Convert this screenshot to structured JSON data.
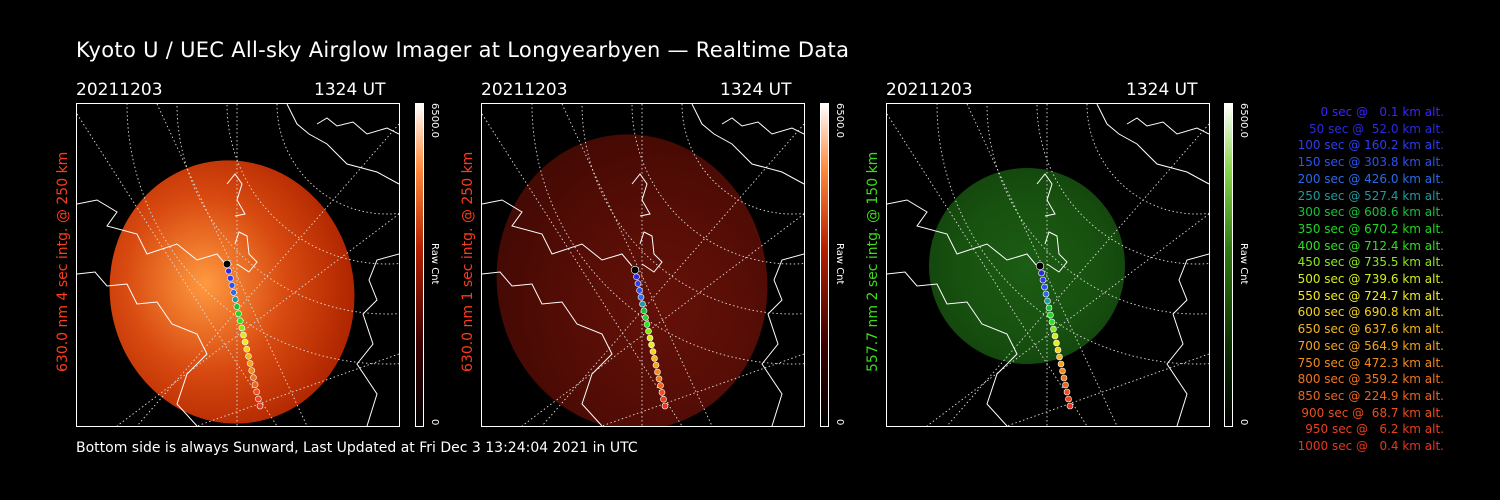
{
  "title": "Kyoto U / UEC All-sky Airglow Imager at Longyearbyen — Realtime Data",
  "panels": [
    {
      "date": "20211203",
      "time": "1324 UT",
      "ylabel": "630.0 nm 4 sec intg. @ 250 km",
      "label_color": "#ff3b1a",
      "cb_max": "6500.0",
      "cb_min": "0",
      "cb_unit": "Raw Cnt",
      "colormap": "red"
    },
    {
      "date": "20211203",
      "time": "1324 UT",
      "ylabel": "630.0 nm 1 sec intg. @ 250 km",
      "label_color": "#ff3b1a",
      "cb_max": "6500.0",
      "cb_min": "0",
      "cb_unit": "Raw Cnt",
      "colormap": "red"
    },
    {
      "date": "20211203",
      "time": "1324 UT",
      "ylabel": "557.7 nm 2 sec intg. @ 150 km",
      "label_color": "#3ddc1a",
      "cb_max": "6500.0",
      "cb_min": "0",
      "cb_unit": "Raw Cnt",
      "colormap": "green"
    }
  ],
  "legend": [
    {
      "text": "   0 sec @   0.1 km alt.",
      "color": "#3a24ff"
    },
    {
      "text": "  50 sec @  52.0 km alt.",
      "color": "#2a2ae0"
    },
    {
      "text": " 100 sec @ 160.2 km alt.",
      "color": "#2f3cf0"
    },
    {
      "text": " 150 sec @ 303.8 km alt.",
      "color": "#2d52f0"
    },
    {
      "text": " 200 sec @ 426.0 km alt.",
      "color": "#2a6ce8"
    },
    {
      "text": " 250 sec @ 527.4 km alt.",
      "color": "#1e9aa0"
    },
    {
      "text": " 300 sec @ 608.6 km alt.",
      "color": "#17c23a"
    },
    {
      "text": " 350 sec @ 670.2 km alt.",
      "color": "#20d820"
    },
    {
      "text": " 400 sec @ 712.4 km alt.",
      "color": "#30e020"
    },
    {
      "text": " 450 sec @ 735.5 km alt.",
      "color": "#8ce81c"
    },
    {
      "text": " 500 sec @ 739.6 km alt.",
      "color": "#d4ec1c"
    },
    {
      "text": " 550 sec @ 724.7 km alt.",
      "color": "#f0ec1c"
    },
    {
      "text": " 600 sec @ 690.8 km alt.",
      "color": "#f5d21c"
    },
    {
      "text": " 650 sec @ 637.6 km alt.",
      "color": "#f5b81c"
    },
    {
      "text": " 700 sec @ 564.9 km alt.",
      "color": "#f5a21c"
    },
    {
      "text": " 750 sec @ 472.3 km alt.",
      "color": "#f08c1c"
    },
    {
      "text": " 800 sec @ 359.2 km alt.",
      "color": "#f0761c"
    },
    {
      "text": " 850 sec @ 224.9 km alt.",
      "color": "#ee641c"
    },
    {
      "text": " 900 sec @  68.7 km alt.",
      "color": "#ec501c"
    },
    {
      "text": " 950 sec @   6.2 km alt.",
      "color": "#ea401c"
    },
    {
      "text": "1000 sec @   0.4 km alt.",
      "color": "#e83520"
    }
  ],
  "footer": "Bottom side is always Sunward, Last Updated at Fri Dec  3 13:24:04 2021 in UTC"
}
